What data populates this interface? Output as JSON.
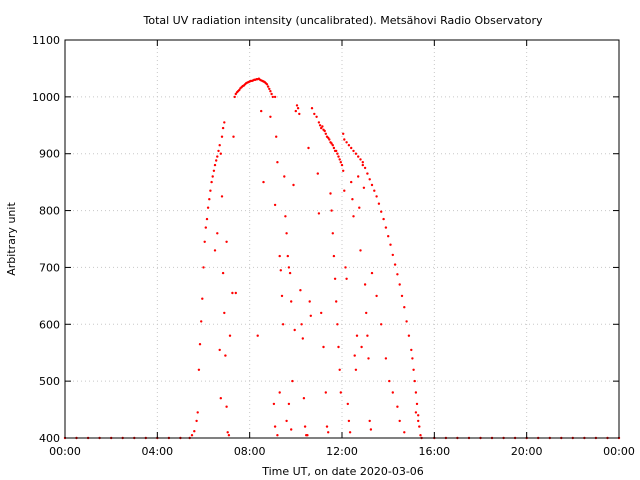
{
  "chart_data": {
    "type": "scatter",
    "title": "Total UV radiation intensity (uncalibrated). Metsähovi Radio Observatory",
    "xlabel": "Time UT, on date 2020-03-06",
    "ylabel": "Arbitrary unit",
    "xlim": [
      0,
      24
    ],
    "ylim": [
      400,
      1100
    ],
    "x_ticks": [
      {
        "value": 0,
        "label": "00:00"
      },
      {
        "value": 4,
        "label": "04:00"
      },
      {
        "value": 8,
        "label": "08:00"
      },
      {
        "value": 12,
        "label": "12:00"
      },
      {
        "value": 16,
        "label": "16:00"
      },
      {
        "value": 20,
        "label": "20:00"
      },
      {
        "value": 24,
        "label": "00:00"
      }
    ],
    "y_ticks": [
      {
        "value": 400,
        "label": "400"
      },
      {
        "value": 500,
        "label": "500"
      },
      {
        "value": 600,
        "label": "600"
      },
      {
        "value": 700,
        "label": "700"
      },
      {
        "value": 800,
        "label": "800"
      },
      {
        "value": 900,
        "label": "900"
      },
      {
        "value": 1000,
        "label": "1000"
      },
      {
        "value": 1100,
        "label": "1100"
      }
    ],
    "grid": true,
    "series": [
      {
        "color": "#ff0000",
        "points": [
          [
            0.0,
            400
          ],
          [
            0.5,
            400
          ],
          [
            1.0,
            400
          ],
          [
            1.5,
            400
          ],
          [
            2.0,
            400
          ],
          [
            2.5,
            400
          ],
          [
            3.0,
            400
          ],
          [
            3.5,
            400
          ],
          [
            4.0,
            400
          ],
          [
            4.5,
            400
          ],
          [
            5.0,
            400
          ],
          [
            5.4,
            400
          ],
          [
            5.5,
            405
          ],
          [
            5.6,
            412
          ],
          [
            5.7,
            430
          ],
          [
            5.75,
            445
          ],
          [
            5.8,
            520
          ],
          [
            5.85,
            565
          ],
          [
            5.9,
            605
          ],
          [
            5.95,
            645
          ],
          [
            6.0,
            700
          ],
          [
            6.05,
            745
          ],
          [
            6.1,
            770
          ],
          [
            6.15,
            785
          ],
          [
            6.2,
            805
          ],
          [
            6.25,
            820
          ],
          [
            6.3,
            835
          ],
          [
            6.35,
            850
          ],
          [
            6.4,
            860
          ],
          [
            6.45,
            870
          ],
          [
            6.5,
            880
          ],
          [
            6.55,
            888
          ],
          [
            6.6,
            895
          ],
          [
            6.65,
            905
          ],
          [
            6.7,
            915
          ],
          [
            6.75,
            900
          ],
          [
            6.8,
            930
          ],
          [
            6.85,
            945
          ],
          [
            6.9,
            955
          ],
          [
            6.85,
            690
          ],
          [
            6.9,
            620
          ],
          [
            6.95,
            545
          ],
          [
            7.0,
            455
          ],
          [
            7.05,
            410
          ],
          [
            7.1,
            405
          ],
          [
            6.7,
            555
          ],
          [
            6.75,
            470
          ],
          [
            6.8,
            825
          ],
          [
            7.0,
            745
          ],
          [
            6.6,
            760
          ],
          [
            6.5,
            730
          ],
          [
            7.15,
            580
          ],
          [
            7.25,
            655
          ],
          [
            7.35,
            1000
          ],
          [
            7.4,
            1005
          ],
          [
            7.45,
            1008
          ],
          [
            7.5,
            1010
          ],
          [
            7.55,
            1012
          ],
          [
            7.6,
            1015
          ],
          [
            7.65,
            1017
          ],
          [
            7.7,
            1019
          ],
          [
            7.75,
            1020
          ],
          [
            7.8,
            1022
          ],
          [
            7.85,
            1024
          ],
          [
            7.9,
            1025
          ],
          [
            7.95,
            1026
          ],
          [
            8.0,
            1027
          ],
          [
            8.05,
            1028
          ],
          [
            8.1,
            1028
          ],
          [
            8.15,
            1029
          ],
          [
            8.2,
            1030
          ],
          [
            8.25,
            1030
          ],
          [
            8.3,
            1031
          ],
          [
            8.35,
            1031
          ],
          [
            8.4,
            1032
          ],
          [
            8.45,
            1030
          ],
          [
            8.5,
            1029
          ],
          [
            8.55,
            1028
          ],
          [
            8.6,
            1027
          ],
          [
            8.65,
            1026
          ],
          [
            8.7,
            1024
          ],
          [
            8.75,
            1022
          ],
          [
            8.8,
            1018
          ],
          [
            8.85,
            1014
          ],
          [
            8.9,
            1010
          ],
          [
            8.95,
            1005
          ],
          [
            9.0,
            1000
          ],
          [
            7.3,
            930
          ],
          [
            7.4,
            655
          ],
          [
            8.35,
            580
          ],
          [
            8.5,
            975
          ],
          [
            8.6,
            850
          ],
          [
            8.9,
            965
          ],
          [
            9.1,
            1000
          ],
          [
            9.2,
            885
          ],
          [
            9.15,
            930
          ],
          [
            9.1,
            810
          ],
          [
            9.3,
            720
          ],
          [
            9.35,
            695
          ],
          [
            9.4,
            650
          ],
          [
            9.45,
            600
          ],
          [
            9.5,
            860
          ],
          [
            9.55,
            790
          ],
          [
            9.6,
            760
          ],
          [
            9.65,
            720
          ],
          [
            9.7,
            700
          ],
          [
            9.75,
            690
          ],
          [
            9.8,
            640
          ],
          [
            9.85,
            500
          ],
          [
            9.9,
            845
          ],
          [
            9.95,
            590
          ],
          [
            9.05,
            460
          ],
          [
            9.1,
            420
          ],
          [
            9.2,
            405
          ],
          [
            9.3,
            480
          ],
          [
            9.6,
            430
          ],
          [
            9.7,
            460
          ],
          [
            9.8,
            415
          ],
          [
            10.0,
            975
          ],
          [
            10.05,
            985
          ],
          [
            10.1,
            980
          ],
          [
            10.15,
            970
          ],
          [
            10.2,
            660
          ],
          [
            10.25,
            600
          ],
          [
            10.3,
            575
          ],
          [
            10.35,
            470
          ],
          [
            10.4,
            420
          ],
          [
            10.45,
            405
          ],
          [
            10.5,
            405
          ],
          [
            10.55,
            910
          ],
          [
            10.6,
            640
          ],
          [
            10.65,
            615
          ],
          [
            10.7,
            980
          ],
          [
            10.8,
            970
          ],
          [
            10.9,
            965
          ],
          [
            11.0,
            955
          ],
          [
            11.05,
            950
          ],
          [
            11.1,
            945
          ],
          [
            11.15,
            948
          ],
          [
            11.2,
            942
          ],
          [
            11.25,
            940
          ],
          [
            11.3,
            935
          ],
          [
            11.35,
            930
          ],
          [
            11.4,
            928
          ],
          [
            11.45,
            925
          ],
          [
            11.5,
            920
          ],
          [
            11.55,
            918
          ],
          [
            11.6,
            915
          ],
          [
            11.65,
            910
          ],
          [
            11.7,
            905
          ],
          [
            11.75,
            905
          ],
          [
            11.8,
            900
          ],
          [
            11.85,
            895
          ],
          [
            11.9,
            890
          ],
          [
            11.95,
            885
          ],
          [
            12.0,
            880
          ],
          [
            10.95,
            865
          ],
          [
            11.0,
            795
          ],
          [
            11.1,
            620
          ],
          [
            11.2,
            560
          ],
          [
            11.3,
            480
          ],
          [
            11.35,
            420
          ],
          [
            11.4,
            410
          ],
          [
            11.5,
            830
          ],
          [
            11.55,
            800
          ],
          [
            11.6,
            760
          ],
          [
            11.65,
            720
          ],
          [
            11.7,
            680
          ],
          [
            11.75,
            640
          ],
          [
            11.8,
            600
          ],
          [
            11.85,
            560
          ],
          [
            11.9,
            520
          ],
          [
            11.95,
            480
          ],
          [
            12.05,
            870
          ],
          [
            12.1,
            835
          ],
          [
            12.15,
            700
          ],
          [
            12.2,
            680
          ],
          [
            12.25,
            460
          ],
          [
            12.3,
            430
          ],
          [
            12.35,
            410
          ],
          [
            12.4,
            850
          ],
          [
            12.45,
            820
          ],
          [
            12.5,
            790
          ],
          [
            12.55,
            545
          ],
          [
            12.6,
            520
          ],
          [
            12.65,
            580
          ],
          [
            12.7,
            860
          ],
          [
            12.75,
            805
          ],
          [
            12.8,
            730
          ],
          [
            12.85,
            560
          ],
          [
            12.9,
            880
          ],
          [
            12.95,
            840
          ],
          [
            13.0,
            670
          ],
          [
            13.05,
            620
          ],
          [
            13.1,
            580
          ],
          [
            13.15,
            540
          ],
          [
            13.2,
            430
          ],
          [
            13.25,
            415
          ],
          [
            12.05,
            935
          ],
          [
            12.1,
            925
          ],
          [
            12.2,
            920
          ],
          [
            12.3,
            915
          ],
          [
            12.4,
            910
          ],
          [
            12.5,
            905
          ],
          [
            12.6,
            900
          ],
          [
            12.7,
            895
          ],
          [
            12.8,
            890
          ],
          [
            12.9,
            885
          ],
          [
            13.0,
            875
          ],
          [
            13.1,
            865
          ],
          [
            13.2,
            855
          ],
          [
            13.3,
            845
          ],
          [
            13.4,
            835
          ],
          [
            13.5,
            825
          ],
          [
            13.6,
            812
          ],
          [
            13.7,
            798
          ],
          [
            13.8,
            785
          ],
          [
            13.9,
            770
          ],
          [
            14.0,
            755
          ],
          [
            14.1,
            740
          ],
          [
            14.2,
            722
          ],
          [
            14.3,
            705
          ],
          [
            14.4,
            688
          ],
          [
            14.5,
            670
          ],
          [
            14.6,
            650
          ],
          [
            14.7,
            630
          ],
          [
            14.8,
            605
          ],
          [
            14.9,
            580
          ],
          [
            15.0,
            555
          ],
          [
            15.05,
            540
          ],
          [
            15.1,
            520
          ],
          [
            15.15,
            500
          ],
          [
            15.2,
            480
          ],
          [
            15.25,
            460
          ],
          [
            15.3,
            440
          ],
          [
            15.35,
            420
          ],
          [
            15.4,
            405
          ],
          [
            13.3,
            690
          ],
          [
            13.5,
            650
          ],
          [
            13.7,
            600
          ],
          [
            13.9,
            540
          ],
          [
            14.05,
            500
          ],
          [
            14.2,
            480
          ],
          [
            14.4,
            455
          ],
          [
            14.5,
            430
          ],
          [
            14.7,
            410
          ],
          [
            15.2,
            445
          ],
          [
            15.3,
            430
          ],
          [
            15.45,
            400
          ],
          [
            16.0,
            400
          ],
          [
            16.5,
            400
          ],
          [
            17.0,
            400
          ],
          [
            17.5,
            400
          ],
          [
            18.0,
            400
          ],
          [
            18.5,
            400
          ],
          [
            19.0,
            400
          ],
          [
            19.5,
            400
          ],
          [
            20.0,
            400
          ],
          [
            20.5,
            400
          ],
          [
            21.0,
            400
          ],
          [
            21.5,
            400
          ],
          [
            22.0,
            400
          ],
          [
            22.5,
            400
          ],
          [
            23.0,
            400
          ],
          [
            23.5,
            400
          ],
          [
            24.0,
            400
          ]
        ]
      }
    ]
  }
}
